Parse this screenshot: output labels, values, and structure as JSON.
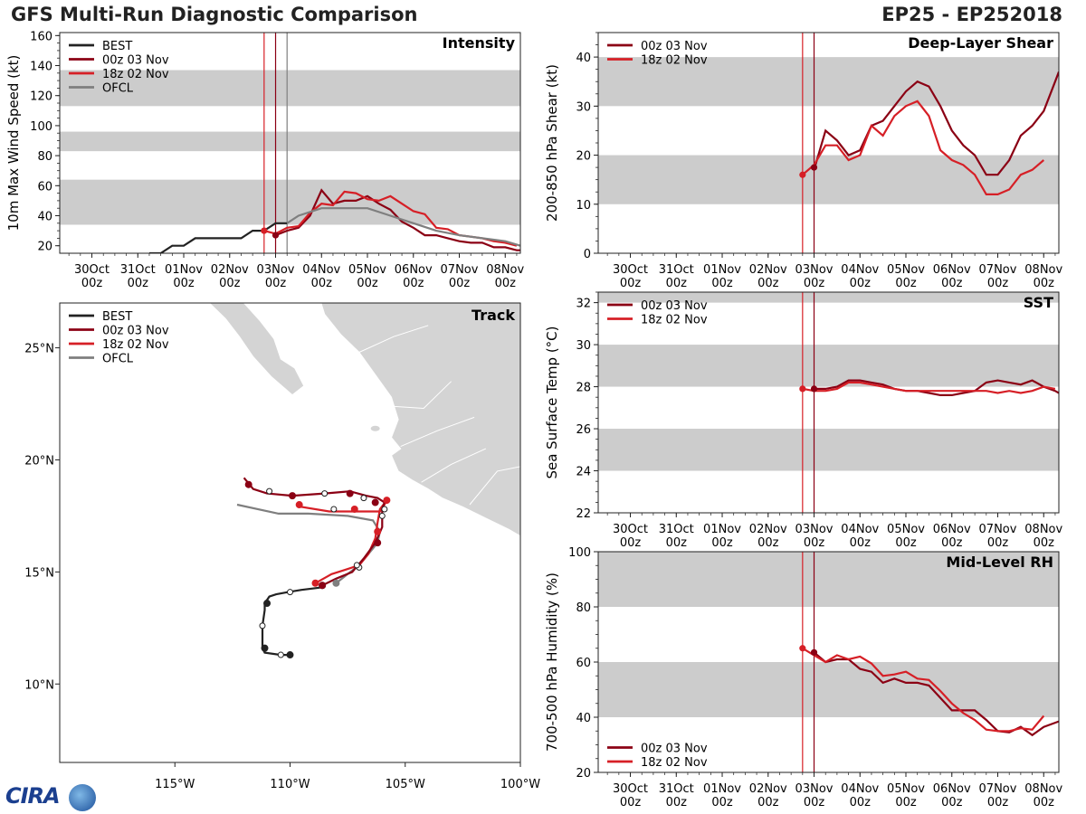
{
  "header": {
    "title": "GFS Multi-Run Diagnostic Comparison",
    "storm_id": "EP25 - EP252018"
  },
  "logo": {
    "text": "CIRA"
  },
  "time_axis": {
    "tick_labels": [
      [
        "30Oct",
        "00z"
      ],
      [
        "31Oct",
        "00z"
      ],
      [
        "01Nov",
        "00z"
      ],
      [
        "02Nov",
        "00z"
      ],
      [
        "03Nov",
        "00z"
      ],
      [
        "04Nov",
        "00z"
      ],
      [
        "05Nov",
        "00z"
      ],
      [
        "06Nov",
        "00z"
      ],
      [
        "07Nov",
        "00z"
      ],
      [
        "08Nov",
        "00z"
      ]
    ],
    "range_days": [
      -0.7,
      9.33
    ]
  },
  "colors": {
    "best": "#222222",
    "run_00z": "#8b0014",
    "run_18z": "#d61f26",
    "ofcl": "#7f7f7f",
    "band": "#cccccc",
    "land": "#d4d4d4"
  },
  "chart_data": [
    {
      "type": "line",
      "name": "intensity",
      "title": "Intensity",
      "ylabel": "10m Max Wind Speed (kt)",
      "ylim": [
        15,
        162
      ],
      "yticks": [
        20,
        40,
        60,
        80,
        100,
        120,
        140,
        160
      ],
      "bands": [
        [
          34,
          64
        ],
        [
          83,
          96
        ],
        [
          113,
          137
        ]
      ],
      "vlines": [
        {
          "x": 3.75,
          "color": "run_18z"
        },
        {
          "x": 4.0,
          "color": "run_00z"
        },
        {
          "x": 4.25,
          "color": "ofcl"
        }
      ],
      "legend": [
        "BEST",
        "00z 03 Nov",
        "18z 02 Nov",
        "OFCL"
      ],
      "series": [
        {
          "name": "BEST",
          "color": "best",
          "x": [
            1.25,
            1.5,
            1.75,
            2.0,
            2.25,
            2.5,
            2.75,
            3.0,
            3.25,
            3.5,
            3.75,
            4.0,
            4.25
          ],
          "y": [
            15,
            15,
            20,
            20,
            25,
            25,
            25,
            25,
            25,
            30,
            30,
            35,
            35
          ]
        },
        {
          "name": "00z 03 Nov",
          "color": "run_00z",
          "x": [
            4.0,
            4.25,
            4.5,
            4.75,
            5.0,
            5.25,
            5.5,
            5.75,
            6.0,
            6.25,
            6.5,
            6.75,
            7.0,
            7.25,
            7.5,
            7.75,
            8.0,
            8.25,
            8.5,
            8.75,
            9.0,
            9.25,
            9.33
          ],
          "y": [
            27,
            30,
            32,
            40,
            57,
            48,
            50,
            50,
            53,
            48,
            44,
            36,
            32,
            27,
            27,
            25,
            23,
            22,
            22,
            19,
            19,
            17,
            17
          ]
        },
        {
          "name": "18z 02 Nov",
          "color": "run_18z",
          "x": [
            3.75,
            4.0,
            4.25,
            4.5,
            4.75,
            5.0,
            5.25,
            5.5,
            5.75,
            6.0,
            6.25,
            6.5,
            6.75,
            7.0,
            7.25,
            7.5,
            7.75,
            8.0,
            8.25,
            8.5,
            8.75,
            9.0,
            9.25
          ],
          "y": [
            30,
            28,
            32,
            33,
            42,
            48,
            47,
            56,
            55,
            51,
            50,
            53,
            48,
            43,
            41,
            32,
            31,
            27,
            26,
            25,
            23,
            22,
            20
          ]
        },
        {
          "name": "OFCL",
          "color": "ofcl",
          "x": [
            4.25,
            4.5,
            5.0,
            5.5,
            6.0,
            6.5,
            7.0,
            7.5,
            8.0,
            8.5,
            9.0,
            9.33
          ],
          "y": [
            35,
            40,
            45,
            45,
            45,
            40,
            35,
            30,
            27,
            25,
            23,
            20
          ]
        }
      ],
      "markers": [
        {
          "series": "run_00z",
          "x": 4.0,
          "y": 27
        },
        {
          "series": "run_18z",
          "x": 3.75,
          "y": 30
        }
      ]
    },
    {
      "type": "line",
      "name": "shear",
      "title": "Deep-Layer Shear",
      "ylabel": "200-850 hPa Shear (kt)",
      "ylim": [
        0,
        45
      ],
      "yticks": [
        0,
        10,
        20,
        30,
        40
      ],
      "bands": [
        [
          10,
          20
        ],
        [
          30,
          40
        ]
      ],
      "vlines": [
        {
          "x": 3.75,
          "color": "run_18z"
        },
        {
          "x": 4.0,
          "color": "run_00z"
        }
      ],
      "legend": [
        "00z 03 Nov",
        "18z 02 Nov"
      ],
      "series": [
        {
          "name": "00z 03 Nov",
          "color": "run_00z",
          "x": [
            4.0,
            4.25,
            4.5,
            4.75,
            5.0,
            5.25,
            5.5,
            5.75,
            6.0,
            6.25,
            6.5,
            6.75,
            7.0,
            7.25,
            7.5,
            7.75,
            8.0,
            8.25,
            8.5,
            8.75,
            9.0,
            9.25,
            9.33
          ],
          "y": [
            17,
            25,
            23,
            20,
            21,
            26,
            27,
            30,
            33,
            35,
            34,
            30,
            25,
            22,
            20,
            16,
            16,
            19,
            24,
            26,
            29,
            35,
            37
          ]
        },
        {
          "name": "18z 02 Nov",
          "color": "run_18z",
          "x": [
            3.75,
            4.0,
            4.25,
            4.5,
            4.75,
            5.0,
            5.25,
            5.5,
            5.75,
            6.0,
            6.25,
            6.5,
            6.75,
            7.0,
            7.25,
            7.5,
            7.75,
            8.0,
            8.25,
            8.5,
            8.75,
            9.0,
            9.25
          ],
          "y": [
            16,
            18,
            22,
            22,
            19,
            20,
            26,
            24,
            28,
            30,
            31,
            28,
            21,
            19,
            18,
            16,
            12,
            12,
            13,
            16,
            17,
            19,
            null
          ]
        }
      ],
      "markers": [
        {
          "series": "run_00z",
          "x": 4.0,
          "y": 17.5
        },
        {
          "series": "run_18z",
          "x": 3.75,
          "y": 16
        }
      ]
    },
    {
      "type": "line",
      "name": "sst",
      "title": "SST",
      "ylabel": "Sea Surface Temp (°C)",
      "ylim": [
        22,
        32.5
      ],
      "yticks": [
        22,
        24,
        26,
        28,
        30,
        32
      ],
      "bands": [
        [
          24,
          26
        ],
        [
          28,
          30
        ],
        [
          32,
          34
        ]
      ],
      "vlines": [
        {
          "x": 3.75,
          "color": "run_18z"
        },
        {
          "x": 4.0,
          "color": "run_00z"
        }
      ],
      "legend": [
        "00z 03 Nov",
        "18z 02 Nov"
      ],
      "series": [
        {
          "name": "00z 03 Nov",
          "color": "run_00z",
          "x": [
            4.0,
            4.25,
            4.5,
            4.75,
            5.0,
            5.25,
            5.5,
            5.75,
            6.0,
            6.25,
            6.5,
            6.75,
            7.0,
            7.25,
            7.5,
            7.75,
            8.0,
            8.25,
            8.5,
            8.75,
            9.0,
            9.25,
            9.33
          ],
          "y": [
            27.9,
            27.9,
            28.0,
            28.3,
            28.3,
            28.2,
            28.1,
            27.9,
            27.8,
            27.8,
            27.7,
            27.6,
            27.6,
            27.7,
            27.8,
            28.2,
            28.3,
            28.2,
            28.1,
            28.3,
            28.0,
            27.8,
            27.7
          ]
        },
        {
          "name": "18z 02 Nov",
          "color": "run_18z",
          "x": [
            3.75,
            4.0,
            4.25,
            4.5,
            4.75,
            5.0,
            5.25,
            5.5,
            5.75,
            6.0,
            6.25,
            6.5,
            6.75,
            7.0,
            7.25,
            7.5,
            7.75,
            8.0,
            8.25,
            8.5,
            8.75,
            9.0,
            9.25
          ],
          "y": [
            27.9,
            27.8,
            27.8,
            27.9,
            28.2,
            28.2,
            28.1,
            28.0,
            27.9,
            27.8,
            27.8,
            27.8,
            27.8,
            27.8,
            27.8,
            27.8,
            27.8,
            27.7,
            27.8,
            27.7,
            27.8,
            28.0,
            27.9
          ]
        }
      ],
      "markers": [
        {
          "series": "run_00z",
          "x": 4.0,
          "y": 27.9
        },
        {
          "series": "run_18z",
          "x": 3.75,
          "y": 27.9
        }
      ]
    },
    {
      "type": "line",
      "name": "rh",
      "title": "Mid-Level RH",
      "ylabel": "700-500 hPa Humidity (%)",
      "ylim": [
        20,
        100
      ],
      "yticks": [
        20,
        40,
        60,
        80,
        100
      ],
      "bands": [
        [
          40,
          60
        ],
        [
          80,
          100
        ]
      ],
      "vlines": [
        {
          "x": 3.75,
          "color": "run_18z"
        },
        {
          "x": 4.0,
          "color": "run_00z"
        }
      ],
      "legend": [
        "00z 03 Nov",
        "18z 02 Nov"
      ],
      "legend_pos": "bottom-left",
      "series": [
        {
          "name": "00z 03 Nov",
          "color": "run_00z",
          "x": [
            4.0,
            4.25,
            4.5,
            4.75,
            5.0,
            5.25,
            5.5,
            5.75,
            6.0,
            6.25,
            6.5,
            6.75,
            7.0,
            7.25,
            7.5,
            7.75,
            8.0,
            8.25,
            8.5,
            8.75,
            9.0,
            9.25,
            9.33
          ],
          "y": [
            63.5,
            60,
            61,
            61,
            57.5,
            56.5,
            52.5,
            54,
            52.5,
            52.5,
            51.5,
            47,
            42.5,
            42.5,
            42.5,
            39,
            35,
            34.5,
            36.5,
            33.5,
            36.5,
            38,
            38.5
          ]
        },
        {
          "name": "18z 02 Nov",
          "color": "run_18z",
          "x": [
            3.75,
            4.0,
            4.25,
            4.5,
            4.75,
            5.0,
            5.25,
            5.5,
            5.75,
            6.0,
            6.25,
            6.5,
            6.75,
            7.0,
            7.25,
            7.5,
            7.75,
            8.0,
            8.25,
            8.5,
            8.75,
            9.0,
            9.25
          ],
          "y": [
            65,
            62.5,
            60,
            62.5,
            61,
            62,
            59.5,
            55,
            55.5,
            56.5,
            54,
            53.5,
            49.5,
            45,
            41.5,
            39,
            35.5,
            35,
            35,
            36,
            35.5,
            40.5,
            null
          ]
        }
      ],
      "markers": [
        {
          "series": "run_00z",
          "x": 4.0,
          "y": 63.5
        },
        {
          "series": "run_18z",
          "x": 3.75,
          "y": 65
        }
      ]
    },
    {
      "type": "scatter",
      "name": "track",
      "title": "Track",
      "xlim": [
        -120,
        -100
      ],
      "ylim": [
        6.5,
        27
      ],
      "xtick_labels": [
        {
          "value": -115,
          "label": "115°W"
        },
        {
          "value": -110,
          "label": "110°W"
        },
        {
          "value": -105,
          "label": "105°W"
        },
        {
          "value": -100,
          "label": "100°W"
        }
      ],
      "ytick_labels": [
        {
          "value": 10,
          "label": "10°N"
        },
        {
          "value": 15,
          "label": "15°N"
        },
        {
          "value": 20,
          "label": "20°N"
        },
        {
          "value": 25,
          "label": "25°N"
        }
      ],
      "legend": [
        "BEST",
        "00z 03 Nov",
        "18z 02 Nov",
        "OFCL"
      ],
      "series": [
        {
          "name": "BEST",
          "color": "best",
          "lon": [
            -110.0,
            -110.4,
            -111.1,
            -111.2,
            -111.2,
            -111.1,
            -111.1,
            -110.9,
            -110.6,
            -110.1,
            -109.5,
            -108.7
          ],
          "lat": [
            11.3,
            11.3,
            11.4,
            11.6,
            12.6,
            13.3,
            13.6,
            13.9,
            14.0,
            14.1,
            14.2,
            14.3
          ],
          "dots": [
            [
              -110,
              11.3,
              1
            ],
            [
              -110.4,
              11.3,
              0
            ],
            [
              -111.1,
              11.6,
              1
            ],
            [
              -111.2,
              12.6,
              0
            ],
            [
              -111.0,
              13.6,
              1
            ],
            [
              -110.0,
              14.1,
              0
            ],
            [
              -108.6,
              14.4,
              1
            ]
          ]
        },
        {
          "name": "00z 03 Nov",
          "color": "run_00z",
          "lon": [
            -108.6,
            -108.0,
            -107.3,
            -106.8,
            -106.3,
            -106.0,
            -106.0,
            -105.9,
            -106.2,
            -106.7,
            -107.4,
            -108.5,
            -109.9,
            -111.0,
            -111.6,
            -112.0
          ],
          "lat": [
            14.4,
            14.7,
            15.0,
            15.6,
            16.3,
            17.0,
            17.8,
            18.1,
            18.3,
            18.4,
            18.6,
            18.5,
            18.4,
            18.5,
            18.7,
            19.2
          ],
          "dots": [
            [
              -108.6,
              14.4,
              1
            ],
            [
              -106.2,
              16.3,
              1
            ],
            [
              -106.0,
              17.5,
              0
            ],
            [
              -106.3,
              18.1,
              1
            ],
            [
              -106.8,
              18.3,
              0
            ],
            [
              -107.4,
              18.5,
              1
            ],
            [
              -108.5,
              18.5,
              0
            ],
            [
              -109.9,
              18.4,
              1
            ],
            [
              -110.9,
              18.6,
              0
            ],
            [
              -111.8,
              18.9,
              1
            ]
          ]
        },
        {
          "name": "18z 02 Nov",
          "color": "run_18z",
          "lon": [
            -108.9,
            -108.2,
            -107.6,
            -107.0,
            -106.6,
            -106.3,
            -106.2,
            -106.1,
            -105.8,
            -105.9,
            -106.1,
            -107.1,
            -108.3,
            -109.5,
            -109.6
          ],
          "lat": [
            14.5,
            14.9,
            15.1,
            15.3,
            15.8,
            16.5,
            17.2,
            17.8,
            18.2,
            18.0,
            17.7,
            17.7,
            17.7,
            17.9,
            18.0
          ],
          "dots": [
            [
              -108.9,
              14.5,
              1
            ],
            [
              -107.1,
              15.3,
              0
            ],
            [
              -106.2,
              16.8,
              1
            ],
            [
              -105.9,
              17.8,
              0
            ],
            [
              -105.8,
              18.2,
              1
            ],
            [
              -107.2,
              17.8,
              1
            ],
            [
              -108.1,
              17.8,
              0
            ],
            [
              -109.6,
              18.0,
              1
            ]
          ]
        },
        {
          "name": "OFCL",
          "color": "ofcl",
          "lon": [
            -108.0,
            -107.5,
            -107.0,
            -106.6,
            -106.2,
            -106.1,
            -106.4,
            -107.5,
            -109.2,
            -110.5,
            -112.3
          ],
          "lat": [
            14.5,
            14.9,
            15.3,
            15.8,
            16.3,
            16.8,
            17.3,
            17.5,
            17.6,
            17.6,
            18.0
          ],
          "dots": [
            [
              -108.0,
              14.5,
              1
            ],
            [
              -107.0,
              15.2,
              0
            ]
          ]
        }
      ]
    }
  ]
}
